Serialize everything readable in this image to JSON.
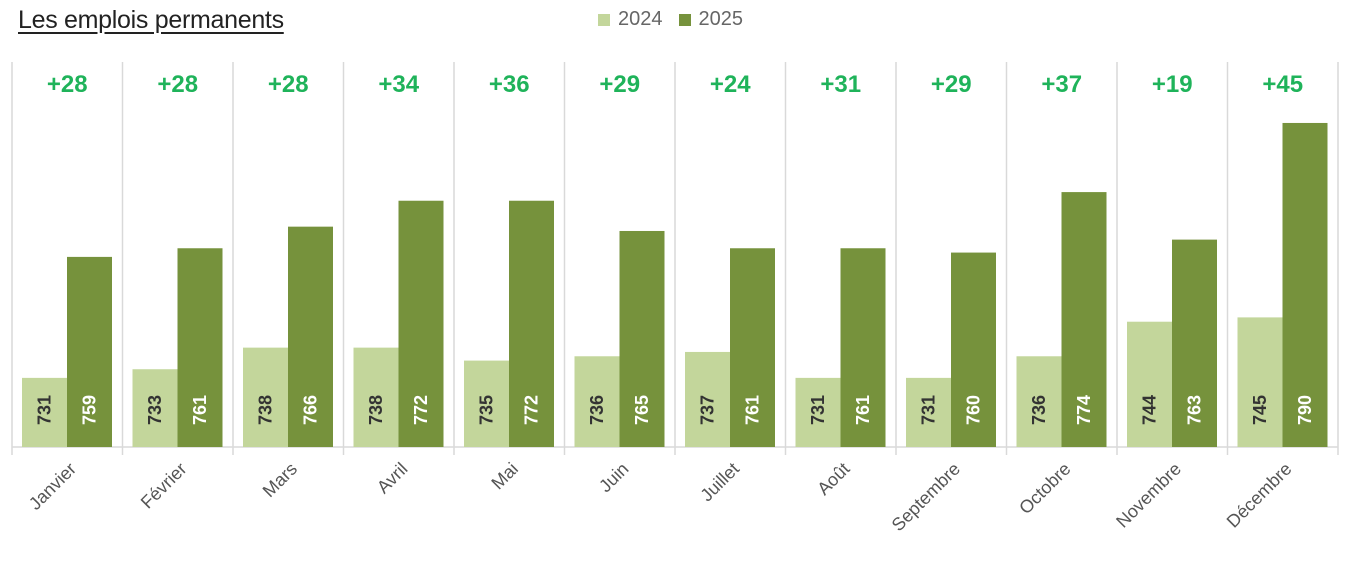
{
  "title": "Les emplois permanents",
  "legend": [
    {
      "label": "2024",
      "color": "#c3d69b"
    },
    {
      "label": "2025",
      "color": "#76923c"
    }
  ],
  "colors": {
    "bar_2024": "#c3d69b",
    "bar_2025": "#76923c",
    "delta": "#1fb35a",
    "grid": "#d9d9d9"
  },
  "chart_data": {
    "type": "bar",
    "title": "Les emplois permanents",
    "categories": [
      "Janvier",
      "Février",
      "Mars",
      "Avril",
      "Mai",
      "Juin",
      "Juillet",
      "Août",
      "Septembre",
      "Octobre",
      "Novembre",
      "Décembre"
    ],
    "series": [
      {
        "name": "2024",
        "values": [
          731,
          733,
          738,
          738,
          735,
          736,
          737,
          731,
          731,
          736,
          744,
          745
        ]
      },
      {
        "name": "2025",
        "values": [
          759,
          761,
          766,
          772,
          772,
          765,
          761,
          761,
          760,
          774,
          763,
          790
        ]
      }
    ],
    "annotations": [
      "+28",
      "+28",
      "+28",
      "+34",
      "+36",
      "+29",
      "+24",
      "+31",
      "+29",
      "+37",
      "+19",
      "+45"
    ],
    "ylim": [
      700,
      800
    ],
    "grid": "vertical separators",
    "legend_position": "top-center"
  }
}
